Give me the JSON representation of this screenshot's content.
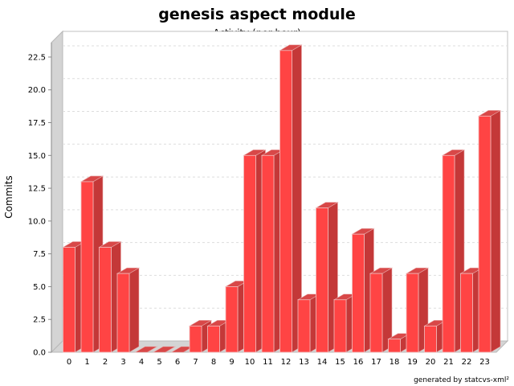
{
  "chart_data": {
    "type": "bar",
    "title": "genesis aspect module",
    "subtitle": "Activity (per hour)",
    "xlabel": "",
    "ylabel": "Commits",
    "categories": [
      "0",
      "1",
      "2",
      "3",
      "4",
      "5",
      "6",
      "7",
      "8",
      "9",
      "10",
      "11",
      "12",
      "13",
      "14",
      "15",
      "16",
      "17",
      "18",
      "19",
      "20",
      "21",
      "22",
      "23"
    ],
    "values": [
      8,
      13,
      8,
      6,
      0,
      0,
      0,
      2,
      2,
      5,
      15,
      15,
      23,
      4,
      11,
      4,
      9,
      6,
      1,
      6,
      2,
      15,
      6,
      18
    ],
    "ylim": [
      0,
      23.6
    ],
    "yticks": [
      "0.0",
      "2.5",
      "5.0",
      "7.5",
      "10.0",
      "12.5",
      "15.0",
      "17.5",
      "20.0",
      "22.5"
    ],
    "grid": true,
    "bar_color": "#ff0000",
    "footer": "generated by statcvs-xml²"
  }
}
